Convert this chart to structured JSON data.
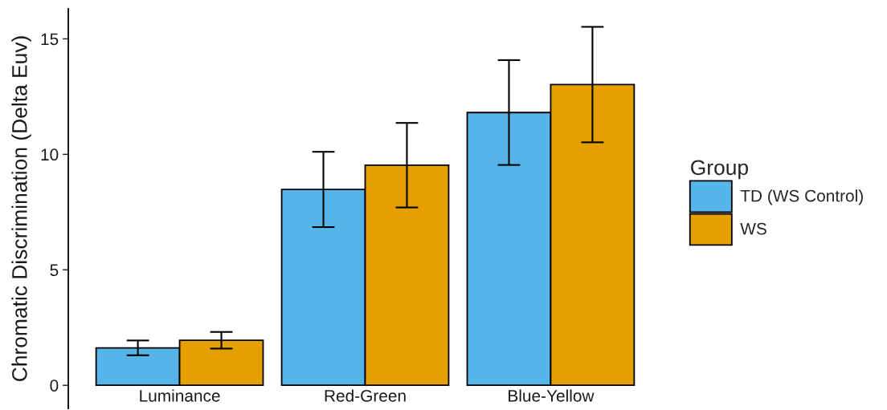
{
  "chart_data": {
    "type": "bar",
    "ylabel": "Chromatic Discrimination (Delta Euv)",
    "legend_title": "Group",
    "categories": [
      "Luminance",
      "Red-Green",
      "Blue-Yellow"
    ],
    "series": [
      {
        "name": "TD (WS Control)",
        "color": "#56b4e9",
        "values": [
          1.62,
          8.48,
          11.81
        ],
        "errors": [
          0.32,
          1.63,
          2.27
        ]
      },
      {
        "name": "WS",
        "color": "#e69f00",
        "values": [
          1.95,
          9.53,
          13.02
        ],
        "errors": [
          0.36,
          1.83,
          2.5
        ]
      }
    ],
    "ylim": [
      -1,
      16.3
    ],
    "yticks": [
      0,
      5,
      10,
      15
    ],
    "grid": false,
    "legend": "right"
  }
}
